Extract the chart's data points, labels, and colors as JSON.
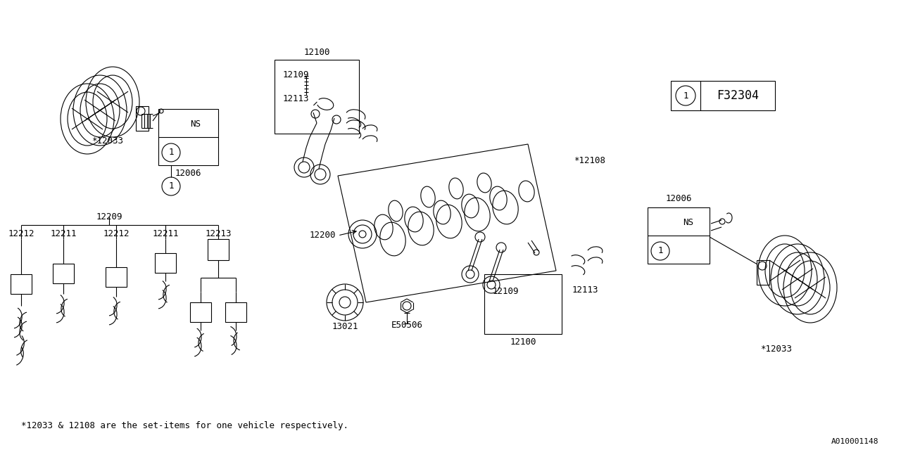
{
  "bg_color": "#ffffff",
  "lc": "#000000",
  "lw": 0.8,
  "fs": 9,
  "diagram_id": "F32304",
  "footnote": "*12033 & 12108 are the set-items for one vehicle respectively.",
  "watermark": "A010001148"
}
